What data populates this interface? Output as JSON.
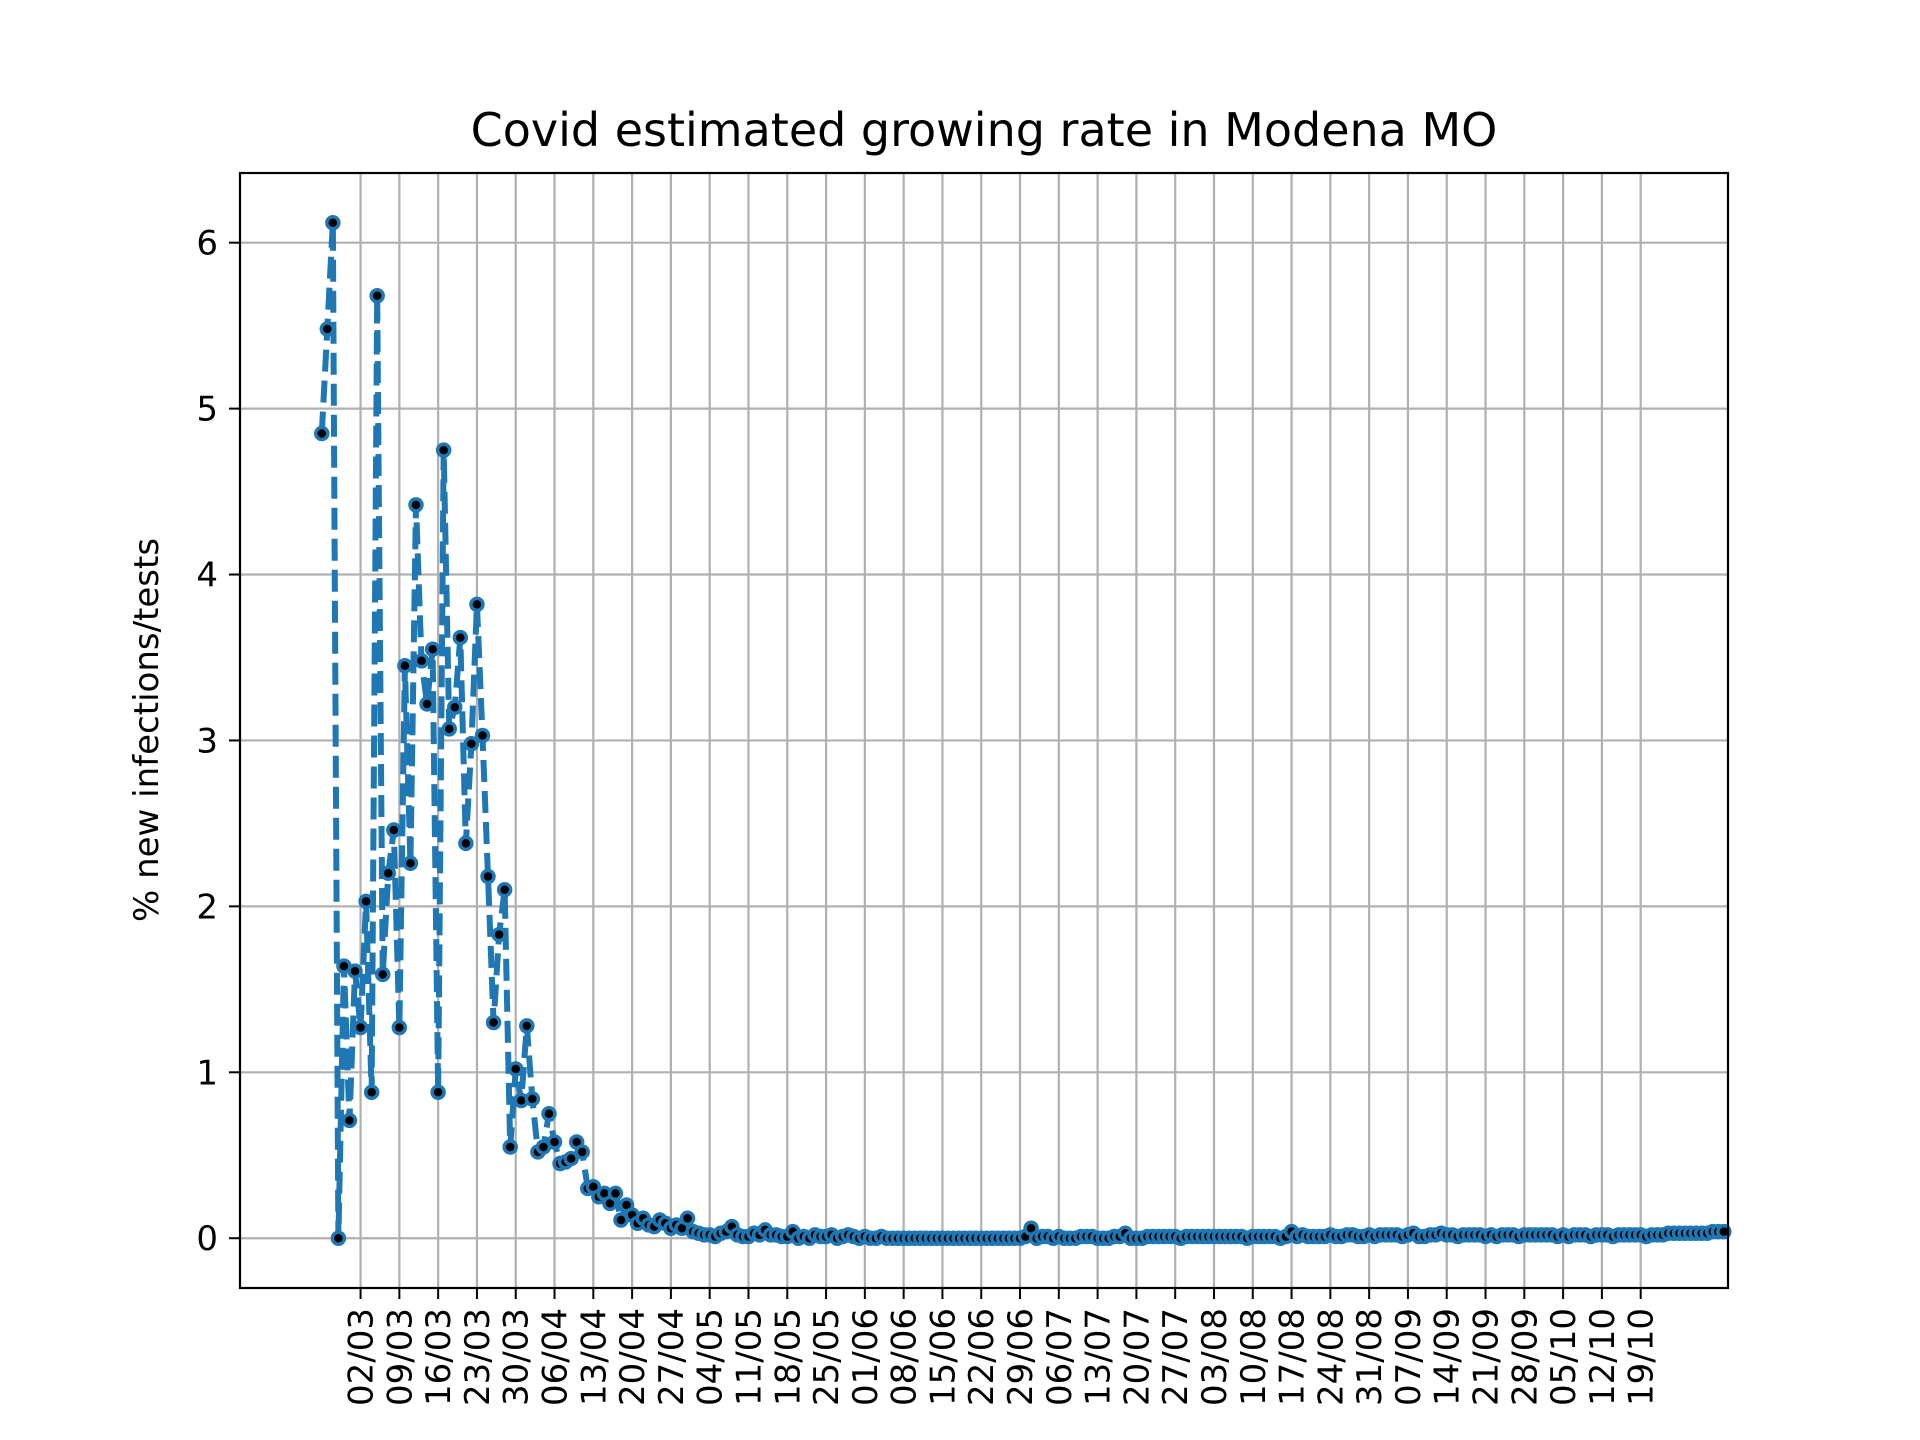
{
  "chart_data": {
    "type": "line",
    "title": "Covid estimated growing rate in Modena MO",
    "xlabel": "",
    "ylabel": "% new infections/tests",
    "ylim": [
      -0.3,
      6.42
    ],
    "yticks": [
      0,
      1,
      2,
      3,
      4,
      5,
      6
    ],
    "grid": true,
    "line_color": "#1f77b4",
    "marker_color": "#000000",
    "line_style": "dashed",
    "x_start_date": "2020-02-24",
    "x_end_date": "2020-10-20",
    "xticks": [
      {
        "date": "2020-03-02",
        "label": "02/03"
      },
      {
        "date": "2020-03-09",
        "label": "09/03"
      },
      {
        "date": "2020-03-16",
        "label": "16/03"
      },
      {
        "date": "2020-03-23",
        "label": "23/03"
      },
      {
        "date": "2020-03-30",
        "label": "30/03"
      },
      {
        "date": "2020-04-06",
        "label": "06/04"
      },
      {
        "date": "2020-04-13",
        "label": "13/04"
      },
      {
        "date": "2020-04-20",
        "label": "20/04"
      },
      {
        "date": "2020-04-27",
        "label": "27/04"
      },
      {
        "date": "2020-05-04",
        "label": "04/05"
      },
      {
        "date": "2020-05-11",
        "label": "11/05"
      },
      {
        "date": "2020-05-18",
        "label": "18/05"
      },
      {
        "date": "2020-05-25",
        "label": "25/05"
      },
      {
        "date": "2020-06-01",
        "label": "01/06"
      },
      {
        "date": "2020-06-08",
        "label": "08/06"
      },
      {
        "date": "2020-06-15",
        "label": "15/06"
      },
      {
        "date": "2020-06-22",
        "label": "22/06"
      },
      {
        "date": "2020-06-29",
        "label": "29/06"
      },
      {
        "date": "2020-07-06",
        "label": "06/07"
      },
      {
        "date": "2020-07-13",
        "label": "13/07"
      },
      {
        "date": "2020-07-20",
        "label": "20/07"
      },
      {
        "date": "2020-07-27",
        "label": "27/07"
      },
      {
        "date": "2020-08-03",
        "label": "03/08"
      },
      {
        "date": "2020-08-10",
        "label": "10/08"
      },
      {
        "date": "2020-08-17",
        "label": "17/08"
      },
      {
        "date": "2020-08-24",
        "label": "24/08"
      },
      {
        "date": "2020-08-31",
        "label": "31/08"
      },
      {
        "date": "2020-09-07",
        "label": "07/09"
      },
      {
        "date": "2020-09-14",
        "label": "14/09"
      },
      {
        "date": "2020-09-21",
        "label": "21/09"
      },
      {
        "date": "2020-09-28",
        "label": "28/09"
      },
      {
        "date": "2020-10-05",
        "label": "05/10"
      },
      {
        "date": "2020-10-12",
        "label": "12/10"
      },
      {
        "date": "2020-10-19",
        "label": "19/10"
      }
    ],
    "series": [
      {
        "x_start": "2020-02-24",
        "step_days": 1,
        "y": [
          4.85,
          5.48,
          6.12,
          0.0,
          1.64,
          0.71,
          1.61,
          1.27,
          2.03,
          0.88,
          5.68,
          1.59,
          2.2,
          2.46,
          1.27,
          3.45,
          2.26,
          4.42,
          3.48,
          3.22,
          3.55,
          0.88,
          4.75,
          3.07,
          3.2,
          3.62,
          2.38,
          2.98,
          3.82,
          3.03,
          2.18,
          1.3,
          1.83,
          2.1,
          0.55,
          1.02,
          0.83,
          1.28,
          0.84,
          0.52,
          0.55,
          0.75,
          0.58,
          0.45,
          0.46,
          0.48,
          0.58,
          0.52,
          0.3,
          0.31,
          0.25,
          0.27,
          0.21,
          0.27,
          0.11,
          0.2,
          0.14,
          0.09,
          0.12,
          0.08,
          0.07,
          0.11,
          0.09,
          0.06,
          0.08,
          0.06,
          0.12,
          0.04,
          0.03,
          0.02,
          0.02,
          0.01,
          0.03,
          0.04,
          0.07,
          0.02,
          0.01,
          0.01,
          0.03,
          0.02,
          0.05,
          0.02,
          0.02,
          0.01,
          0.01,
          0.04,
          0.0,
          0.01,
          0.0,
          0.02,
          0.01,
          0.01,
          0.02,
          0.0,
          0.01,
          0.02,
          0.01,
          0.0,
          0.01,
          0.0,
          0.0,
          0.01,
          0.0,
          0.0,
          0.0,
          0.0,
          0.0,
          0.0,
          0.0,
          0.0,
          0.0,
          0.0,
          0.0,
          0.0,
          0.0,
          0.0,
          0.0,
          0.0,
          0.0,
          0.0,
          0.0,
          0.0,
          0.0,
          0.0,
          0.0,
          0.0,
          0.0,
          0.01,
          0.06,
          0.0,
          0.01,
          0.01,
          0.0,
          0.01,
          0.0,
          0.0,
          0.0,
          0.01,
          0.01,
          0.01,
          0.0,
          0.0,
          0.0,
          0.01,
          0.01,
          0.03,
          0.0,
          0.0,
          0.0,
          0.01,
          0.01,
          0.01,
          0.01,
          0.01,
          0.01,
          0.0,
          0.01,
          0.01,
          0.01,
          0.01,
          0.01,
          0.01,
          0.01,
          0.01,
          0.01,
          0.01,
          0.01,
          0.0,
          0.01,
          0.01,
          0.01,
          0.01,
          0.01,
          0.0,
          0.01,
          0.04,
          0.01,
          0.02,
          0.01,
          0.01,
          0.01,
          0.01,
          0.02,
          0.01,
          0.01,
          0.02,
          0.02,
          0.01,
          0.01,
          0.02,
          0.01,
          0.02,
          0.02,
          0.02,
          0.02,
          0.01,
          0.02,
          0.03,
          0.01,
          0.01,
          0.02,
          0.02,
          0.03,
          0.02,
          0.02,
          0.01,
          0.02,
          0.02,
          0.02,
          0.02,
          0.01,
          0.02,
          0.01,
          0.02,
          0.02,
          0.02,
          0.01,
          0.02,
          0.02,
          0.02,
          0.02,
          0.02,
          0.02,
          0.01,
          0.02,
          0.01,
          0.02,
          0.02,
          0.02,
          0.01,
          0.02,
          0.02,
          0.02,
          0.01,
          0.02,
          0.02,
          0.02,
          0.02,
          0.02,
          0.01,
          0.02,
          0.02,
          0.02,
          0.03,
          0.03,
          0.03,
          0.03,
          0.03,
          0.03,
          0.03,
          0.03,
          0.04,
          0.04,
          0.04
        ]
      }
    ]
  }
}
